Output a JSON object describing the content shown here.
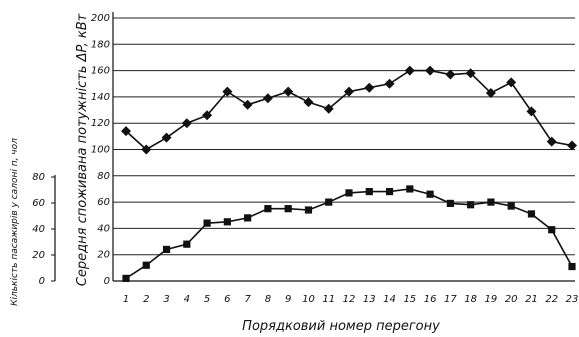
{
  "chart_data": {
    "type": "line",
    "xlabel": "Порядковий номер перегону",
    "ylabel_power": "Середня споживана потужність ΔP, кВт",
    "ylabel_passengers": "Кількість пасажирів у салоні п, чол",
    "x": [
      1,
      2,
      3,
      4,
      5,
      6,
      7,
      8,
      9,
      10,
      11,
      12,
      13,
      14,
      15,
      16,
      17,
      18,
      19,
      20,
      21,
      22,
      23
    ],
    "power_ylim": [
      0,
      200
    ],
    "power_yticks": [
      0,
      20,
      40,
      60,
      80,
      100,
      120,
      140,
      160,
      180,
      200
    ],
    "passengers_ylim": [
      0,
      80
    ],
    "passengers_yticks": [
      0,
      20,
      40,
      60,
      80
    ],
    "grid": "horizontal",
    "series": [
      {
        "marker": "diamond",
        "axis": "power",
        "values": [
          114,
          100,
          109,
          120,
          126,
          144,
          134,
          139,
          144,
          136,
          131,
          144,
          147,
          150,
          160,
          160,
          157,
          158,
          143,
          151,
          129,
          106,
          103
        ]
      },
      {
        "marker": "square",
        "axis": "power",
        "values": [
          2,
          12,
          24,
          28,
          44,
          45,
          48,
          55,
          55,
          54,
          60,
          67,
          68,
          68,
          70,
          66,
          59,
          58,
          60,
          57,
          51,
          39,
          11
        ]
      }
    ]
  }
}
